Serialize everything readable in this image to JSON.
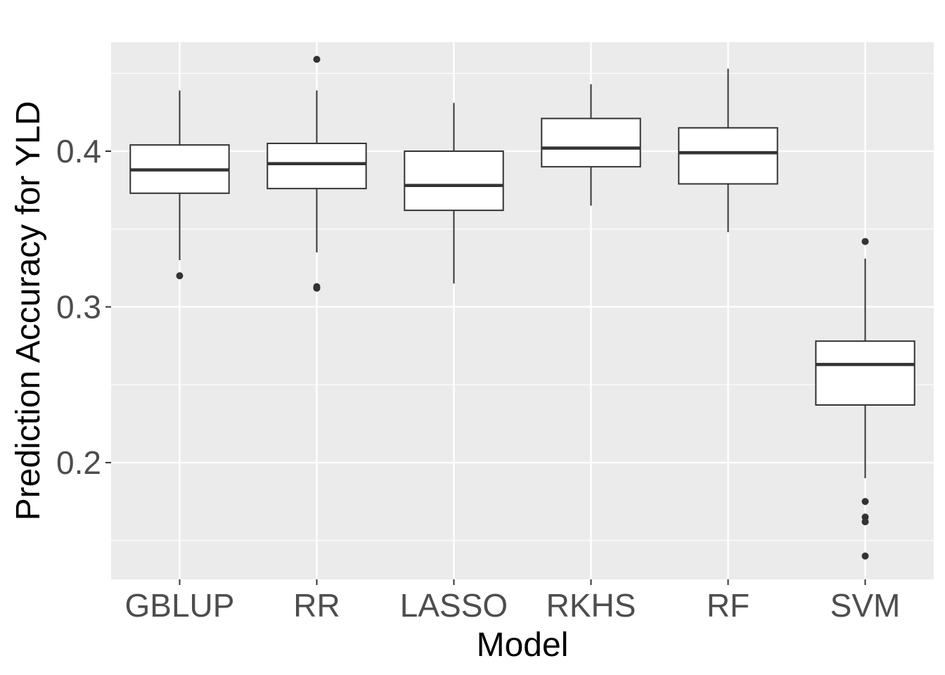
{
  "chart_data": {
    "type": "box",
    "xlabel": "Model",
    "ylabel": "Prediction Accuracy for YLD",
    "ylim": [
      0.125,
      0.47
    ],
    "y_ticks": [
      0.2,
      0.3,
      0.4
    ],
    "y_tick_labels": [
      "0.2",
      "0.3",
      "0.4"
    ],
    "grid": true,
    "panel_background": "#ebebeb",
    "box_fill": "#ffffff",
    "line_color": "#333333",
    "categories": [
      "GBLUP",
      "RR",
      "LASSO",
      "RKHS",
      "RF",
      "SVM"
    ],
    "boxes": [
      {
        "category": "GBLUP",
        "lower_whisker": 0.33,
        "q1": 0.373,
        "median": 0.388,
        "q3": 0.404,
        "upper_whisker": 0.439,
        "outliers": [
          0.32
        ]
      },
      {
        "category": "RR",
        "lower_whisker": 0.335,
        "q1": 0.376,
        "median": 0.392,
        "q3": 0.405,
        "upper_whisker": 0.439,
        "outliers": [
          0.459,
          0.312,
          0.313
        ]
      },
      {
        "category": "LASSO",
        "lower_whisker": 0.315,
        "q1": 0.362,
        "median": 0.378,
        "q3": 0.4,
        "upper_whisker": 0.431,
        "outliers": []
      },
      {
        "category": "RKHS",
        "lower_whisker": 0.365,
        "q1": 0.39,
        "median": 0.402,
        "q3": 0.421,
        "upper_whisker": 0.443,
        "outliers": []
      },
      {
        "category": "RF",
        "lower_whisker": 0.348,
        "q1": 0.379,
        "median": 0.399,
        "q3": 0.415,
        "upper_whisker": 0.453,
        "outliers": []
      },
      {
        "category": "SVM",
        "lower_whisker": 0.19,
        "q1": 0.237,
        "median": 0.263,
        "q3": 0.278,
        "upper_whisker": 0.331,
        "outliers": [
          0.342,
          0.175,
          0.165,
          0.162,
          0.14
        ]
      }
    ]
  }
}
